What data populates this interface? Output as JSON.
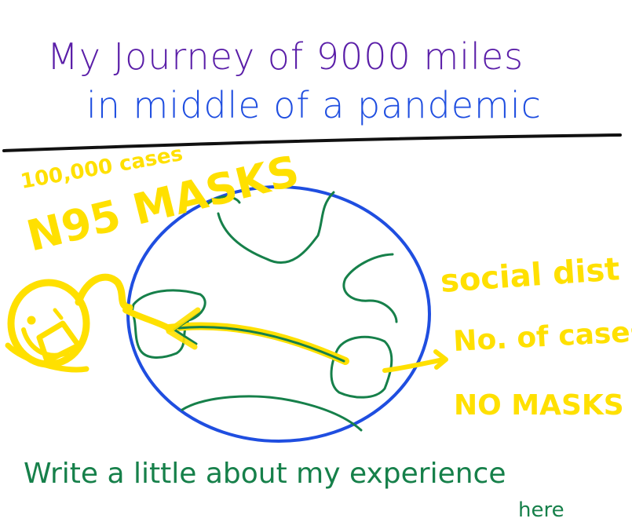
{
  "title": {
    "line1": "My Journey of 9000 miles",
    "line2": "in middle of a pandemic"
  },
  "left_note": {
    "count": "100,000 cases",
    "masks": "N95 MASKS"
  },
  "right_note": {
    "line1": "social dist",
    "line2": "No. of cases",
    "line3": "NO MASKS"
  },
  "footer": {
    "line1": "Write a little about my experience",
    "line2": "here"
  },
  "colors": {
    "title_line1": "#5a1ea8",
    "title_line2": "#1f4ee0",
    "divider": "#111111",
    "globe": "#1f4ee0",
    "continents": "#16804a",
    "highlight": "#ffe000",
    "footer": "#16804a"
  }
}
